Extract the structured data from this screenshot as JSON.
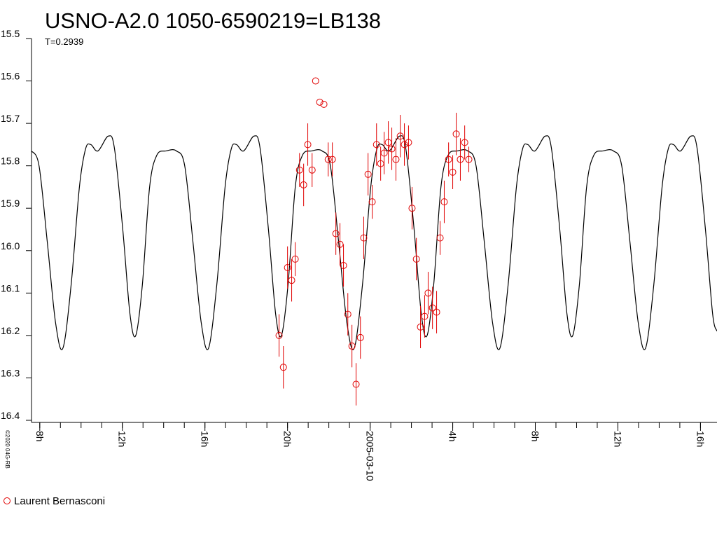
{
  "chart_data": {
    "type": "scatter",
    "title": "USNO-A2.0 1050-6590219=LB138",
    "subtitle": "T=0.2939",
    "credit": "©2020 04G-RB",
    "xlim": [
      -16.4,
      16.8
    ],
    "ylim": [
      15.5,
      16.4
    ],
    "y_inverted": true,
    "xticks": [
      {
        "value": -16,
        "label": "8h"
      },
      {
        "value": -12,
        "label": "12h"
      },
      {
        "value": -8,
        "label": "16h"
      },
      {
        "value": -4,
        "label": "20h"
      },
      {
        "value": 0,
        "label": "2005-03-10"
      },
      {
        "value": 4,
        "label": "4h"
      },
      {
        "value": 8,
        "label": "8h"
      },
      {
        "value": 12,
        "label": "12h"
      },
      {
        "value": 16,
        "label": "16h"
      }
    ],
    "xminorticks": [
      -16,
      -15,
      -14,
      -13,
      -12,
      -11,
      -10,
      -9,
      -8,
      -7,
      -6,
      -5,
      -4,
      -3,
      -2,
      -1,
      0,
      1,
      2,
      3,
      4,
      5,
      6,
      7,
      8,
      9,
      10,
      11,
      12,
      13,
      14,
      15,
      16
    ],
    "yticks": [
      15.5,
      15.6,
      15.7,
      15.8,
      15.9,
      {
        "value": 16,
        "label": "16.0"
      },
      16.1,
      16.2,
      16.3,
      16.4
    ],
    "series": [
      {
        "type": "line",
        "color": "#000000",
        "x": [
          -16.4,
          -16.035,
          -15.635,
          -15.235,
          -14.88,
          -14.48,
          -14.08,
          -13.78,
          -13.53,
          -13.18,
          -12.68,
          -12.38,
          -11.98,
          -11.63,
          -11.35,
          -11.03,
          -10.68,
          -10.33,
          -9.88,
          -9.38,
          -8.98,
          -8.58,
          -8.18,
          -7.825,
          -7.425,
          -7.025,
          -6.725,
          -6.475,
          -6.125,
          -5.625,
          -5.325,
          -4.925,
          -4.575,
          -4.295,
          -3.975,
          -3.625,
          -3.275,
          -2.825,
          -2.325,
          -1.925,
          -1.525,
          -1.125,
          -0.77,
          -0.37,
          0.03,
          0.33,
          0.58,
          0.93,
          1.43,
          1.73,
          2.13,
          2.48,
          2.76,
          3.08,
          3.43,
          3.78,
          4.23,
          4.73,
          5.13,
          5.53,
          5.93,
          6.285,
          6.685,
          7.085,
          7.385,
          7.635,
          7.985,
          8.485,
          8.785,
          9.185,
          9.535,
          9.815,
          10.135,
          10.485,
          10.835,
          11.285,
          11.785,
          12.185,
          12.585,
          12.985,
          13.34,
          13.74,
          14.14,
          14.44,
          14.69,
          15.04,
          15.54,
          15.84,
          16.24,
          16.59,
          16.8
        ],
        "values": [
          15.765,
          15.8,
          15.98,
          16.17,
          16.23,
          16.08,
          15.85,
          15.76,
          15.75,
          15.765,
          15.73,
          15.76,
          15.95,
          16.15,
          16.2,
          16.08,
          15.85,
          15.775,
          15.765,
          15.765,
          15.8,
          15.98,
          16.17,
          16.23,
          16.08,
          15.85,
          15.76,
          15.75,
          15.765,
          15.73,
          15.76,
          15.95,
          16.15,
          16.2,
          16.08,
          15.85,
          15.775,
          15.765,
          15.765,
          15.8,
          15.98,
          16.17,
          16.23,
          16.08,
          15.85,
          15.76,
          15.75,
          15.765,
          15.73,
          15.76,
          15.95,
          16.15,
          16.2,
          16.08,
          15.85,
          15.775,
          15.765,
          15.765,
          15.8,
          15.98,
          16.17,
          16.23,
          16.08,
          15.85,
          15.76,
          15.75,
          15.765,
          15.73,
          15.76,
          15.95,
          16.15,
          16.2,
          16.08,
          15.85,
          15.775,
          15.765,
          15.765,
          15.8,
          15.98,
          16.17,
          16.23,
          16.08,
          15.85,
          15.76,
          15.75,
          15.765,
          15.73,
          15.76,
          15.95,
          16.15,
          16.19
        ]
      },
      {
        "type": "scatter",
        "name": "Laurent Bernasconi",
        "color": "#e00000",
        "x": [
          -4.41,
          -4.2,
          -4.0,
          -3.8,
          -3.63,
          -3.42,
          -3.22,
          -3.02,
          -2.81,
          -2.64,
          -2.44,
          -2.24,
          -2.03,
          -1.83,
          -1.66,
          -1.46,
          -1.29,
          -1.08,
          -0.88,
          -0.68,
          -0.47,
          -0.31,
          -0.1,
          0.1,
          0.31,
          0.51,
          0.68,
          0.88,
          1.05,
          1.25,
          1.46,
          1.66,
          1.86,
          2.03,
          2.24,
          2.44,
          2.64,
          2.81,
          3.02,
          3.22,
          3.39,
          3.59,
          3.8,
          4.0,
          4.17,
          4.37,
          4.58,
          4.78
        ],
        "values": [
          16.2,
          16.275,
          16.04,
          16.07,
          16.02,
          15.81,
          15.845,
          15.75,
          15.81,
          15.6,
          15.65,
          15.655,
          15.785,
          15.785,
          15.96,
          15.985,
          16.035,
          16.15,
          16.225,
          16.315,
          16.205,
          15.97,
          15.82,
          15.885,
          15.75,
          15.795,
          15.77,
          15.745,
          15.76,
          15.785,
          15.73,
          15.75,
          15.745,
          15.9,
          16.02,
          16.18,
          16.155,
          16.1,
          16.135,
          16.145,
          15.97,
          15.885,
          15.785,
          15.815,
          15.725,
          15.785,
          15.745,
          15.785
        ],
        "errors": [
          0.05,
          0.05,
          0.05,
          0.05,
          0.04,
          0.04,
          0.05,
          0.05,
          0.04,
          null,
          null,
          null,
          0.04,
          0.04,
          0.05,
          0.05,
          0.05,
          0.05,
          0.05,
          0.05,
          0.05,
          0.05,
          0.05,
          0.04,
          0.05,
          0.04,
          0.05,
          0.05,
          0.05,
          0.05,
          0.05,
          0.05,
          0.04,
          0.05,
          0.05,
          0.05,
          0.05,
          0.05,
          0.05,
          0.05,
          0.04,
          0.05,
          0.04,
          0.04,
          0.05,
          0.05,
          0.04,
          0.03
        ]
      }
    ]
  }
}
